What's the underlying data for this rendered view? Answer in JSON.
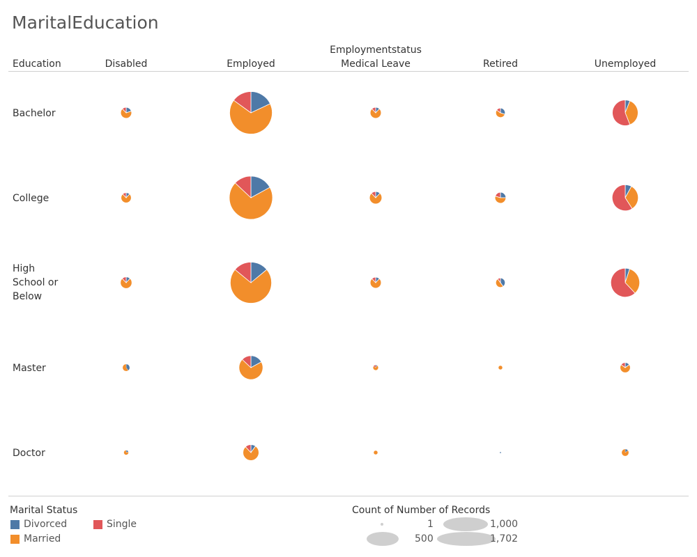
{
  "title": "MaritalEducation",
  "row_header": "Education",
  "column_group_header": "Employmentstatus",
  "colors": {
    "Divorced": "#4e79a7",
    "Married": "#f28e2b",
    "Single": "#e15759"
  },
  "chart_data": {
    "type": "pie",
    "title": "MaritalEducation",
    "row_field": "Education",
    "column_field": "Employmentstatus",
    "color_field": "Marital Status",
    "size_field": "Count of Number of Records",
    "columns": [
      "Disabled",
      "Employed",
      "Medical Leave",
      "Retired",
      "Unemployed"
    ],
    "rows": [
      "Bachelor",
      "College",
      "High School or Below",
      "Master",
      "Doctor"
    ],
    "series_order": [
      "Divorced",
      "Married",
      "Single"
    ],
    "cells": [
      {
        "row": "Bachelor",
        "column": "Disabled",
        "total": 110,
        "shares": {
          "Divorced": 0.2,
          "Married": 0.68,
          "Single": 0.12
        }
      },
      {
        "row": "Bachelor",
        "column": "Employed",
        "total": 1650,
        "shares": {
          "Divorced": 0.18,
          "Married": 0.67,
          "Single": 0.15
        }
      },
      {
        "row": "Bachelor",
        "column": "Medical Leave",
        "total": 110,
        "shares": {
          "Divorced": 0.12,
          "Married": 0.76,
          "Single": 0.12
        }
      },
      {
        "row": "Bachelor",
        "column": "Retired",
        "total": 80,
        "shares": {
          "Divorced": 0.3,
          "Married": 0.55,
          "Single": 0.15
        }
      },
      {
        "row": "Bachelor",
        "column": "Unemployed",
        "total": 600,
        "shares": {
          "Divorced": 0.06,
          "Married": 0.38,
          "Single": 0.56
        }
      },
      {
        "row": "College",
        "column": "Disabled",
        "total": 95,
        "shares": {
          "Divorced": 0.12,
          "Married": 0.76,
          "Single": 0.12
        }
      },
      {
        "row": "College",
        "column": "Employed",
        "total": 1702,
        "shares": {
          "Divorced": 0.17,
          "Married": 0.7,
          "Single": 0.13
        }
      },
      {
        "row": "College",
        "column": "Medical Leave",
        "total": 140,
        "shares": {
          "Divorced": 0.12,
          "Married": 0.76,
          "Single": 0.12
        }
      },
      {
        "row": "College",
        "column": "Retired",
        "total": 110,
        "shares": {
          "Divorced": 0.25,
          "Married": 0.55,
          "Single": 0.2
        }
      },
      {
        "row": "College",
        "column": "Unemployed",
        "total": 620,
        "shares": {
          "Divorced": 0.08,
          "Married": 0.33,
          "Single": 0.59
        }
      },
      {
        "row": "High School or Below",
        "column": "Disabled",
        "total": 120,
        "shares": {
          "Divorced": 0.12,
          "Married": 0.76,
          "Single": 0.12
        }
      },
      {
        "row": "High School or Below",
        "column": "Employed",
        "total": 1550,
        "shares": {
          "Divorced": 0.14,
          "Married": 0.72,
          "Single": 0.14
        }
      },
      {
        "row": "High School or Below",
        "column": "Medical Leave",
        "total": 110,
        "shares": {
          "Divorced": 0.12,
          "Married": 0.76,
          "Single": 0.12
        }
      },
      {
        "row": "High School or Below",
        "column": "Retired",
        "total": 80,
        "shares": {
          "Divorced": 0.4,
          "Married": 0.5,
          "Single": 0.1
        }
      },
      {
        "row": "High School or Below",
        "column": "Unemployed",
        "total": 760,
        "shares": {
          "Divorced": 0.05,
          "Married": 0.33,
          "Single": 0.62
        }
      },
      {
        "row": "Master",
        "column": "Disabled",
        "total": 45,
        "shares": {
          "Divorced": 0.4,
          "Married": 0.6,
          "Single": 0.0
        }
      },
      {
        "row": "Master",
        "column": "Employed",
        "total": 520,
        "shares": {
          "Divorced": 0.17,
          "Married": 0.7,
          "Single": 0.13
        }
      },
      {
        "row": "Master",
        "column": "Medical Leave",
        "total": 25,
        "shares": {
          "Divorced": 0.1,
          "Married": 0.75,
          "Single": 0.15
        }
      },
      {
        "row": "Master",
        "column": "Retired",
        "total": 15,
        "shares": {
          "Divorced": 0.0,
          "Married": 1.0,
          "Single": 0.0
        }
      },
      {
        "row": "Master",
        "column": "Unemployed",
        "total": 95,
        "shares": {
          "Divorced": 0.15,
          "Married": 0.7,
          "Single": 0.15
        }
      },
      {
        "row": "Doctor",
        "column": "Disabled",
        "total": 20,
        "shares": {
          "Divorced": 0.2,
          "Married": 0.8,
          "Single": 0.0
        }
      },
      {
        "row": "Doctor",
        "column": "Employed",
        "total": 230,
        "shares": {
          "Divorced": 0.1,
          "Married": 0.78,
          "Single": 0.12
        }
      },
      {
        "row": "Doctor",
        "column": "Medical Leave",
        "total": 15,
        "shares": {
          "Divorced": 0.0,
          "Married": 1.0,
          "Single": 0.0
        }
      },
      {
        "row": "Doctor",
        "column": "Retired",
        "total": 1,
        "shares": {
          "Divorced": 1.0,
          "Married": 0.0,
          "Single": 0.0
        }
      },
      {
        "row": "Doctor",
        "column": "Unemployed",
        "total": 45,
        "shares": {
          "Divorced": 0.15,
          "Married": 0.85,
          "Single": 0.0
        }
      }
    ]
  },
  "legend": {
    "color_title": "Marital Status",
    "color_items": [
      {
        "label": "Divorced",
        "color": "#4e79a7"
      },
      {
        "label": "Married",
        "color": "#f28e2b"
      },
      {
        "label": "Single",
        "color": "#e15759"
      }
    ],
    "size_title": "Count of Number of Records",
    "size_items": [
      {
        "label": "1",
        "value": 1
      },
      {
        "label": "500",
        "value": 500
      },
      {
        "label": "1,000",
        "value": 1000
      },
      {
        "label": "1,702",
        "value": 1702
      }
    ]
  }
}
